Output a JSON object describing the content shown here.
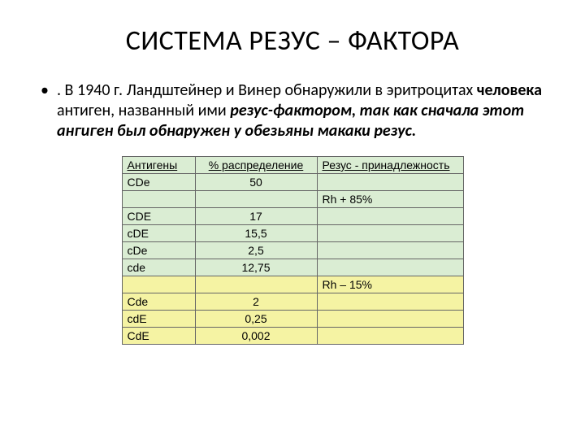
{
  "title": "СИСТЕМА РЕЗУС – ФАКТОРА",
  "bullet_glyph": "•",
  "body": {
    "p1_a": ". В 1940 г. Ландштейнер и Винер обнаружили в эритроцитах ",
    "p1_b_bold": "человека",
    "p1_c": " антиген, названный ими ",
    "p1_d_bi": "резус-фактором, так как сначала этот ангиген был обнаружен у обезьяны макаки резус."
  },
  "table": {
    "headers": {
      "antigens": "Антигены",
      "pct": "% распределение",
      "rh": "Резус - принадлежность"
    },
    "rows": [
      {
        "ant": "CDe",
        "pct": "50",
        "rh": "",
        "bg": "green"
      },
      {
        "ant": "",
        "pct": "",
        "rh": "Rh + 85%",
        "bg": "green"
      },
      {
        "ant": "CDE",
        "pct": "17",
        "rh": "",
        "bg": "green"
      },
      {
        "ant": "cDE",
        "pct": "15,5",
        "rh": "",
        "bg": "green"
      },
      {
        "ant": "cDe",
        "pct": "2,5",
        "rh": "",
        "bg": "green"
      },
      {
        "ant": "cde",
        "pct": "12,75",
        "rh": "",
        "bg": "green"
      },
      {
        "ant": "",
        "pct": "",
        "rh": "Rh – 15%",
        "bg": "yellow"
      },
      {
        "ant": "Cde",
        "pct": "2",
        "rh": "",
        "bg": "yellow"
      },
      {
        "ant": "cdE",
        "pct": "0,25",
        "rh": "",
        "bg": "yellow"
      },
      {
        "ant": "CdE",
        "pct": "0,002",
        "rh": "",
        "bg": "yellow"
      }
    ]
  }
}
